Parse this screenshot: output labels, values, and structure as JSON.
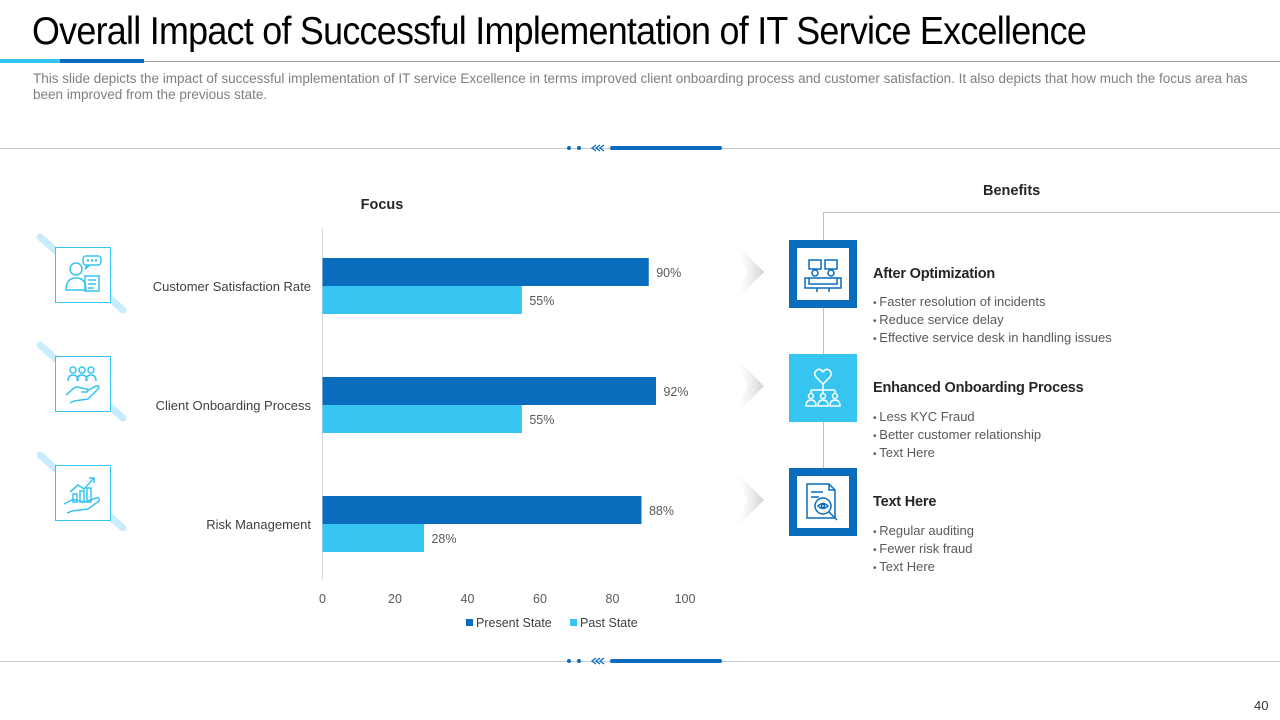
{
  "header": {
    "title": "Overall Impact of Successful Implementation of IT Service Excellence",
    "subtitle": "This slide depicts the impact of successful implementation of  IT service Excellence in terms improved client onboarding process and customer satisfaction.  It also depicts that how much the focus area has been improved from the previous state."
  },
  "colors": {
    "present": "#0a6cbd",
    "past": "#36c5f0",
    "accent_dark": "#0a6cbd",
    "accent_light": "#36c5f0"
  },
  "chart_data": {
    "type": "bar",
    "orientation": "horizontal",
    "title": "Focus",
    "categories": [
      "Customer Satisfaction Rate",
      "Client Onboarding Process",
      "Risk Management"
    ],
    "series": [
      {
        "name": "Present State",
        "values": [
          90,
          92,
          88
        ]
      },
      {
        "name": "Past State",
        "values": [
          55,
          55,
          28
        ]
      }
    ],
    "value_labels": [
      [
        "90%",
        "92%",
        "88%"
      ],
      [
        "55%",
        "55%",
        "28%"
      ]
    ],
    "xlim": [
      0,
      100
    ],
    "xticks": [
      0,
      20,
      40,
      60,
      80,
      100
    ],
    "legend": "bottom",
    "xlabel": "",
    "ylabel": ""
  },
  "left_icons": [
    "customer-support-icon",
    "team-hand-icon",
    "growth-chart-hand-icon"
  ],
  "benefits": {
    "heading": "Benefits",
    "items": [
      {
        "title": "After Optimization",
        "icon": "service-desk-icon",
        "bullets": [
          "Faster resolution of incidents",
          "Reduce service delay",
          "Effective service desk in handling issues"
        ]
      },
      {
        "title": "Enhanced Onboarding Process",
        "icon": "heart-team-icon",
        "bullets": [
          "Less KYC Fraud",
          "Better customer relationship",
          "Text Here"
        ]
      },
      {
        "title": "Text Here",
        "icon": "risk-audit-icon",
        "bullets": [
          "Regular auditing",
          "Fewer risk fraud",
          "Text Here"
        ]
      }
    ]
  },
  "footer": {
    "page_number": "40"
  }
}
